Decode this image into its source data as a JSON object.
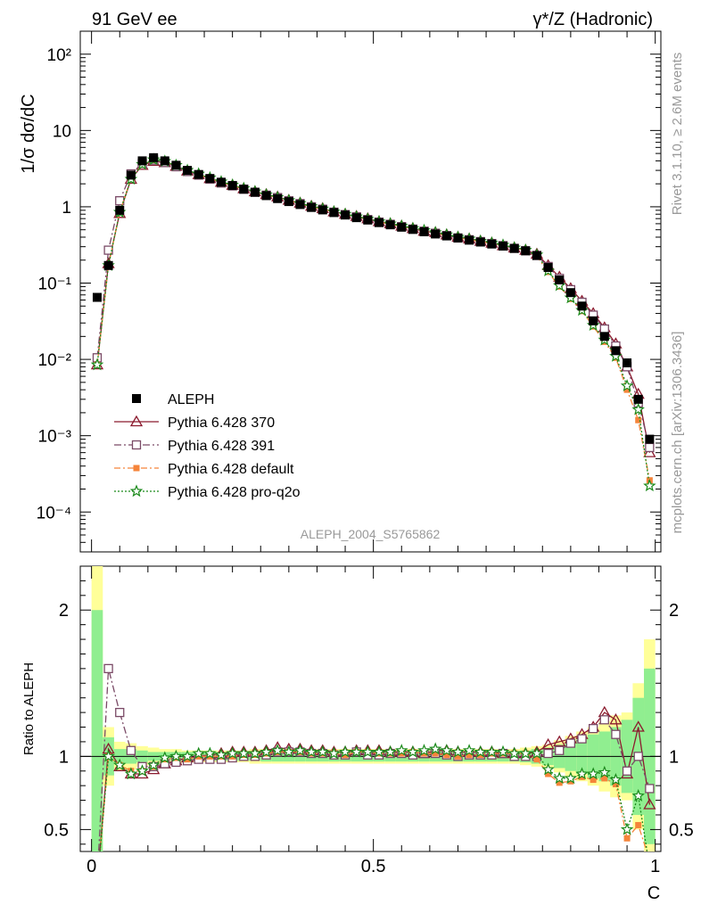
{
  "header": {
    "left": "91 GeV ee",
    "right": "γ*/Z (Hadronic)"
  },
  "side_labels": {
    "rivet": "Rivet 3.1.10, ≥ 2.6M events",
    "mcplots": "mcplots.cern.ch [arXiv:1306.3436]"
  },
  "analysis_id": "ALEPH_2004_S5765862",
  "colors": {
    "aleph": "#000000",
    "p370": "#8b1a2e",
    "p391": "#7a4a66",
    "pdefault": "#f5843a",
    "pq2o": "#1a8a1a",
    "band_inner": "#90ee90",
    "band_outer": "#ffff99"
  },
  "chart_data": [
    {
      "type": "scatter",
      "panel": "main",
      "ylabel": "1/σ  dσ/dC",
      "xlabel": "C",
      "xlim": [
        0,
        1
      ],
      "ylim": [
        3e-05,
        200
      ],
      "yscale": "log",
      "y_tick_labels": [
        "10⁻⁴",
        "10⁻³",
        "10⁻²",
        "10⁻¹",
        "1",
        "10",
        "10²"
      ],
      "legend_position": "lower-left",
      "x": [
        0.01,
        0.03,
        0.05,
        0.07,
        0.09,
        0.11,
        0.13,
        0.15,
        0.17,
        0.19,
        0.21,
        0.23,
        0.25,
        0.27,
        0.29,
        0.31,
        0.33,
        0.35,
        0.37,
        0.39,
        0.41,
        0.43,
        0.45,
        0.47,
        0.49,
        0.51,
        0.53,
        0.55,
        0.57,
        0.59,
        0.61,
        0.63,
        0.65,
        0.67,
        0.69,
        0.71,
        0.73,
        0.75,
        0.77,
        0.79,
        0.81,
        0.83,
        0.85,
        0.87,
        0.89,
        0.91,
        0.93,
        0.95,
        0.97,
        0.99
      ],
      "series": [
        {
          "name": "ALEPH",
          "marker": "filled-square",
          "values": [
            0.065,
            0.17,
            0.9,
            2.6,
            4.0,
            4.4,
            4.0,
            3.5,
            3.0,
            2.65,
            2.35,
            2.1,
            1.9,
            1.7,
            1.55,
            1.4,
            1.28,
            1.17,
            1.07,
            0.98,
            0.91,
            0.84,
            0.78,
            0.72,
            0.67,
            0.62,
            0.58,
            0.54,
            0.505,
            0.47,
            0.44,
            0.415,
            0.39,
            0.365,
            0.345,
            0.325,
            0.305,
            0.285,
            0.265,
            0.23,
            0.16,
            0.11,
            0.075,
            0.05,
            0.032,
            0.02,
            0.013,
            0.009,
            0.003,
            0.0009
          ]
        },
        {
          "name": "Pythia 6.428 370",
          "marker": "open-triangle",
          "values": [
            0.0085,
            0.18,
            0.82,
            2.3,
            3.5,
            3.95,
            3.8,
            3.4,
            2.95,
            2.65,
            2.35,
            2.1,
            1.92,
            1.73,
            1.58,
            1.45,
            1.35,
            1.22,
            1.12,
            1.02,
            0.95,
            0.86,
            0.8,
            0.75,
            0.7,
            0.64,
            0.6,
            0.56,
            0.52,
            0.48,
            0.46,
            0.43,
            0.4,
            0.38,
            0.355,
            0.335,
            0.31,
            0.29,
            0.27,
            0.24,
            0.17,
            0.12,
            0.085,
            0.058,
            0.04,
            0.026,
            0.016,
            0.008,
            0.0035,
            0.0006
          ]
        },
        {
          "name": "Pythia 6.428 391",
          "marker": "open-square",
          "values": [
            0.0105,
            0.27,
            1.2,
            2.7,
            3.7,
            4.1,
            3.8,
            3.35,
            2.9,
            2.6,
            2.3,
            2.05,
            1.88,
            1.7,
            1.55,
            1.42,
            1.32,
            1.2,
            1.1,
            1.0,
            0.93,
            0.85,
            0.79,
            0.74,
            0.68,
            0.63,
            0.59,
            0.55,
            0.51,
            0.48,
            0.45,
            0.42,
            0.39,
            0.37,
            0.35,
            0.33,
            0.31,
            0.285,
            0.265,
            0.23,
            0.165,
            0.115,
            0.082,
            0.056,
            0.038,
            0.025,
            0.015,
            0.008,
            0.0027,
            0.0007
          ]
        },
        {
          "name": "Pythia 6.428 default",
          "marker": "filled-small-square",
          "values": [
            0.0085,
            0.17,
            0.85,
            2.35,
            3.6,
            4.1,
            3.9,
            3.45,
            2.95,
            2.65,
            2.35,
            2.1,
            1.9,
            1.72,
            1.57,
            1.43,
            1.32,
            1.2,
            1.1,
            1.0,
            0.93,
            0.86,
            0.79,
            0.74,
            0.69,
            0.63,
            0.59,
            0.55,
            0.52,
            0.48,
            0.45,
            0.42,
            0.39,
            0.37,
            0.35,
            0.33,
            0.31,
            0.29,
            0.27,
            0.225,
            0.14,
            0.09,
            0.062,
            0.043,
            0.027,
            0.017,
            0.0105,
            0.004,
            0.0016,
            0.00026
          ]
        },
        {
          "name": "Pythia 6.428 pro-q2o",
          "marker": "star",
          "values": [
            0.0085,
            0.17,
            0.85,
            2.3,
            3.6,
            4.15,
            3.95,
            3.5,
            3.0,
            2.7,
            2.4,
            2.13,
            1.93,
            1.74,
            1.58,
            1.44,
            1.33,
            1.21,
            1.11,
            1.01,
            0.94,
            0.86,
            0.8,
            0.74,
            0.69,
            0.64,
            0.6,
            0.56,
            0.52,
            0.49,
            0.46,
            0.43,
            0.4,
            0.38,
            0.355,
            0.335,
            0.315,
            0.29,
            0.27,
            0.235,
            0.145,
            0.093,
            0.064,
            0.044,
            0.028,
            0.018,
            0.011,
            0.0045,
            0.0022,
            0.00022
          ]
        }
      ]
    },
    {
      "type": "line",
      "panel": "ratio",
      "ylabel": "Ratio to ALEPH",
      "xlabel": "C",
      "xlim": [
        0,
        1
      ],
      "ylim": [
        0.35,
        2.3
      ],
      "y_tick_labels": [
        "0.5",
        "1",
        "2"
      ],
      "x_tick_labels": [
        "0",
        "0.5",
        "1"
      ],
      "x": [
        0.01,
        0.03,
        0.05,
        0.07,
        0.09,
        0.11,
        0.13,
        0.15,
        0.17,
        0.19,
        0.21,
        0.23,
        0.25,
        0.27,
        0.29,
        0.31,
        0.33,
        0.35,
        0.37,
        0.39,
        0.41,
        0.43,
        0.45,
        0.47,
        0.49,
        0.51,
        0.53,
        0.55,
        0.57,
        0.59,
        0.61,
        0.63,
        0.65,
        0.67,
        0.69,
        0.71,
        0.73,
        0.75,
        0.77,
        0.79,
        0.81,
        0.83,
        0.85,
        0.87,
        0.89,
        0.91,
        0.93,
        0.95,
        0.97,
        0.99
      ],
      "band_inner": [
        1.0,
        0.13,
        0.05,
        0.05,
        0.04,
        0.03,
        0.03,
        0.03,
        0.03,
        0.03,
        0.03,
        0.03,
        0.03,
        0.03,
        0.03,
        0.035,
        0.035,
        0.035,
        0.035,
        0.035,
        0.035,
        0.035,
        0.035,
        0.035,
        0.035,
        0.035,
        0.035,
        0.035,
        0.035,
        0.035,
        0.035,
        0.035,
        0.035,
        0.035,
        0.035,
        0.035,
        0.035,
        0.035,
        0.04,
        0.05,
        0.06,
        0.08,
        0.1,
        0.12,
        0.15,
        0.17,
        0.2,
        0.25,
        0.4,
        0.6
      ],
      "band_outer": [
        1.3,
        0.2,
        0.1,
        0.09,
        0.07,
        0.06,
        0.05,
        0.05,
        0.04,
        0.04,
        0.04,
        0.04,
        0.04,
        0.04,
        0.05,
        0.05,
        0.05,
        0.05,
        0.05,
        0.05,
        0.05,
        0.05,
        0.05,
        0.05,
        0.05,
        0.05,
        0.05,
        0.05,
        0.05,
        0.05,
        0.05,
        0.05,
        0.05,
        0.05,
        0.05,
        0.05,
        0.05,
        0.05,
        0.06,
        0.07,
        0.08,
        0.11,
        0.14,
        0.17,
        0.2,
        0.24,
        0.28,
        0.3,
        0.5,
        0.8
      ],
      "series": [
        {
          "name": "Pythia 6.428 370",
          "values": [
            0.13,
            1.05,
            0.93,
            0.88,
            0.88,
            0.91,
            0.95,
            0.97,
            0.99,
            1.0,
            1.01,
            1.02,
            1.03,
            1.03,
            1.03,
            1.04,
            1.06,
            1.05,
            1.05,
            1.04,
            1.04,
            1.03,
            1.03,
            1.04,
            1.04,
            1.04,
            1.03,
            1.03,
            1.03,
            1.02,
            1.04,
            1.04,
            1.03,
            1.03,
            1.03,
            1.03,
            1.02,
            1.02,
            1.02,
            1.03,
            1.08,
            1.1,
            1.12,
            1.15,
            1.2,
            1.3,
            1.25,
            0.88,
            1.2,
            0.67
          ]
        },
        {
          "name": "Pythia 6.428 391",
          "values": [
            0.16,
            1.6,
            1.3,
            1.04,
            0.93,
            0.93,
            0.95,
            0.96,
            0.97,
            0.98,
            0.98,
            0.98,
            0.99,
            1.0,
            1.0,
            1.01,
            1.03,
            1.03,
            1.03,
            1.02,
            1.02,
            1.01,
            1.01,
            1.03,
            1.01,
            1.01,
            1.02,
            1.02,
            1.01,
            1.02,
            1.02,
            1.01,
            1.0,
            1.01,
            1.01,
            1.01,
            1.02,
            1.0,
            1.0,
            1.0,
            1.02,
            1.04,
            1.09,
            1.12,
            1.19,
            1.25,
            1.15,
            0.9,
            1.0,
            0.78
          ]
        },
        {
          "name": "Pythia 6.428 default",
          "values": [
            0.13,
            1.0,
            0.94,
            0.9,
            0.9,
            0.93,
            0.98,
            0.99,
            0.98,
            1.0,
            1.0,
            1.0,
            1.0,
            1.01,
            1.01,
            1.02,
            1.03,
            1.03,
            1.03,
            1.02,
            1.02,
            1.02,
            1.01,
            1.03,
            1.03,
            1.02,
            1.02,
            1.02,
            1.03,
            1.02,
            1.02,
            1.01,
            1.0,
            1.01,
            1.01,
            1.02,
            1.02,
            1.02,
            1.02,
            0.98,
            0.88,
            0.82,
            0.83,
            0.86,
            0.84,
            0.85,
            0.81,
            0.44,
            0.53,
            0.29
          ]
        },
        {
          "name": "Pythia 6.428 pro-q2o",
          "values": [
            0.13,
            1.0,
            0.94,
            0.88,
            0.9,
            0.94,
            0.99,
            1.0,
            1.0,
            1.02,
            1.02,
            1.01,
            1.02,
            1.02,
            1.02,
            1.03,
            1.04,
            1.03,
            1.04,
            1.03,
            1.03,
            1.02,
            1.03,
            1.03,
            1.03,
            1.03,
            1.03,
            1.04,
            1.03,
            1.04,
            1.05,
            1.04,
            1.03,
            1.04,
            1.03,
            1.03,
            1.03,
            1.02,
            1.02,
            1.02,
            0.91,
            0.85,
            0.85,
            0.88,
            0.88,
            0.89,
            0.84,
            0.5,
            0.73,
            0.24
          ]
        }
      ]
    }
  ]
}
